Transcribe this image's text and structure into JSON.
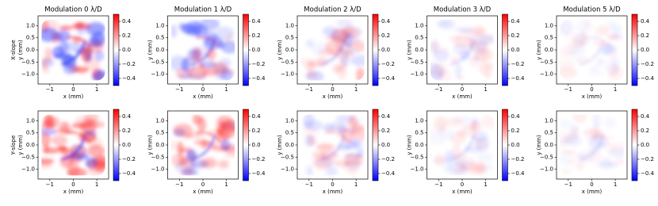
{
  "chart_data": [
    {
      "type": "heatmap",
      "title": "Modulation 0 λ/D",
      "row_label": "X-slope",
      "xlabel": "x (mm)",
      "ylabel": "y (mm)",
      "xlim": [
        -1.5,
        1.5
      ],
      "xticks": [
        {
          "value": -1,
          "label": "−1"
        },
        0,
        1
      ],
      "ylim": [
        -1.4,
        1.4
      ],
      "yticks": [
        {
          "value": -1,
          "label": "−1.0"
        },
        {
          "value": -0.5,
          "label": "−0.5"
        },
        {
          "value": 0,
          "label": "0.0"
        },
        0.5,
        {
          "value": 1,
          "label": "1.0"
        }
      ],
      "clim": [
        -0.5,
        0.5
      ],
      "cticks": [
        {
          "value": -0.4,
          "label": "−0.4"
        },
        {
          "value": -0.2,
          "label": "−0.2"
        },
        {
          "value": 0,
          "label": "0.0"
        },
        0.2,
        0.4
      ],
      "colormap": "bwr"
    },
    {
      "type": "heatmap",
      "title": "Modulation 1 λ/D",
      "xlabel": "x (mm)",
      "ylabel": "y (mm)",
      "xlim": [
        -1.5,
        1.5
      ],
      "xticks": [
        {
          "value": -1,
          "label": "−1"
        },
        0,
        1
      ],
      "ylim": [
        -1.4,
        1.4
      ],
      "yticks": [
        {
          "value": -1,
          "label": "−1.0"
        },
        {
          "value": -0.5,
          "label": "−0.5"
        },
        {
          "value": 0,
          "label": "0.0"
        },
        0.5,
        {
          "value": 1,
          "label": "1.0"
        }
      ],
      "clim": [
        -0.5,
        0.5
      ],
      "cticks": [
        {
          "value": -0.4,
          "label": "−0.4"
        },
        {
          "value": -0.2,
          "label": "−0.2"
        },
        {
          "value": 0,
          "label": "0.0"
        },
        0.2,
        0.4
      ],
      "colormap": "bwr"
    },
    {
      "type": "heatmap",
      "title": "Modulation 2 λ/D",
      "xlabel": "x (mm)",
      "ylabel": "y (mm)",
      "xlim": [
        -1.5,
        1.5
      ],
      "xticks": [
        {
          "value": -1,
          "label": "−1"
        },
        0,
        1
      ],
      "ylim": [
        -1.4,
        1.4
      ],
      "yticks": [
        {
          "value": -1,
          "label": "−1.0"
        },
        {
          "value": -0.5,
          "label": "−0.5"
        },
        {
          "value": 0,
          "label": "0.0"
        },
        0.5,
        {
          "value": 1,
          "label": "1.0"
        }
      ],
      "clim": [
        -0.5,
        0.5
      ],
      "cticks": [
        {
          "value": -0.4,
          "label": "−0.4"
        },
        {
          "value": -0.2,
          "label": "−0.2"
        },
        {
          "value": 0,
          "label": "0.0"
        },
        0.2,
        0.4
      ],
      "colormap": "bwr"
    },
    {
      "type": "heatmap",
      "title": "Modulation 3 λ/D",
      "xlabel": "x (mm)",
      "ylabel": "y (mm)",
      "xlim": [
        -1.5,
        1.5
      ],
      "xticks": [
        {
          "value": -1,
          "label": "−1"
        },
        0,
        1
      ],
      "ylim": [
        -1.4,
        1.4
      ],
      "yticks": [
        {
          "value": -1,
          "label": "−1.0"
        },
        {
          "value": -0.5,
          "label": "−0.5"
        },
        {
          "value": 0,
          "label": "0.0"
        },
        0.5,
        {
          "value": 1,
          "label": "1.0"
        }
      ],
      "clim": [
        -0.5,
        0.5
      ],
      "cticks": [
        {
          "value": -0.4,
          "label": "−0.4"
        },
        {
          "value": -0.2,
          "label": "−0.2"
        },
        {
          "value": 0,
          "label": "0.0"
        },
        0.2,
        0.4
      ],
      "colormap": "bwr"
    },
    {
      "type": "heatmap",
      "title": "Modulation 5 λ/D",
      "xlabel": "x (mm)",
      "ylabel": "y (mm)",
      "xlim": [
        -1.5,
        1.5
      ],
      "xticks": [
        {
          "value": -1,
          "label": "−1"
        },
        0,
        1
      ],
      "ylim": [
        -1.4,
        1.4
      ],
      "yticks": [
        {
          "value": -1,
          "label": "−1.0"
        },
        {
          "value": -0.5,
          "label": "−0.5"
        },
        {
          "value": 0,
          "label": "0.0"
        },
        0.5,
        {
          "value": 1,
          "label": "1.0"
        }
      ],
      "clim": [
        -0.5,
        0.5
      ],
      "cticks": [
        {
          "value": -0.4,
          "label": "−0.4"
        },
        {
          "value": -0.2,
          "label": "−0.2"
        },
        {
          "value": 0,
          "label": "0.0"
        },
        0.2,
        0.4
      ],
      "colormap": "bwr"
    },
    {
      "type": "heatmap",
      "row_label": "Y-slope",
      "xlabel": "x (mm)",
      "ylabel": "y (mm)",
      "xlim": [
        -1.5,
        1.5
      ],
      "xticks": [
        {
          "value": -1,
          "label": "−1"
        },
        0,
        1
      ],
      "ylim": [
        -1.4,
        1.4
      ],
      "yticks": [
        {
          "value": -1,
          "label": "−1.0"
        },
        {
          "value": -0.5,
          "label": "−0.5"
        },
        {
          "value": 0,
          "label": "0.0"
        },
        0.5,
        {
          "value": 1,
          "label": "1.0"
        }
      ],
      "clim": [
        -0.5,
        0.5
      ],
      "cticks": [
        {
          "value": -0.4,
          "label": "−0.4"
        },
        {
          "value": -0.2,
          "label": "−0.2"
        },
        {
          "value": 0,
          "label": "0.0"
        },
        0.2,
        0.4
      ],
      "colormap": "bwr"
    },
    {
      "type": "heatmap",
      "xlabel": "x (mm)",
      "ylabel": "y (mm)",
      "xlim": [
        -1.5,
        1.5
      ],
      "xticks": [
        {
          "value": -1,
          "label": "−1"
        },
        0,
        1
      ],
      "ylim": [
        -1.4,
        1.4
      ],
      "yticks": [
        {
          "value": -1,
          "label": "−1.0"
        },
        {
          "value": -0.5,
          "label": "−0.5"
        },
        {
          "value": 0,
          "label": "0.0"
        },
        0.5,
        {
          "value": 1,
          "label": "1.0"
        }
      ],
      "clim": [
        -0.5,
        0.5
      ],
      "cticks": [
        {
          "value": -0.4,
          "label": "−0.4"
        },
        {
          "value": -0.2,
          "label": "−0.2"
        },
        {
          "value": 0,
          "label": "0.0"
        },
        0.2,
        0.4
      ],
      "colormap": "bwr"
    },
    {
      "type": "heatmap",
      "xlabel": "x (mm)",
      "ylabel": "y (mm)",
      "xlim": [
        -1.5,
        1.5
      ],
      "xticks": [
        {
          "value": -1,
          "label": "−1"
        },
        0,
        1
      ],
      "ylim": [
        -1.4,
        1.4
      ],
      "yticks": [
        {
          "value": -1,
          "label": "−1.0"
        },
        {
          "value": -0.5,
          "label": "−0.5"
        },
        {
          "value": 0,
          "label": "0.0"
        },
        0.5,
        {
          "value": 1,
          "label": "1.0"
        }
      ],
      "clim": [
        -0.5,
        0.5
      ],
      "cticks": [
        {
          "value": -0.4,
          "label": "−0.4"
        },
        {
          "value": -0.2,
          "label": "−0.2"
        },
        {
          "value": 0,
          "label": "0.0"
        },
        0.2,
        0.4
      ],
      "colormap": "bwr"
    },
    {
      "type": "heatmap",
      "xlabel": "x (mm)",
      "ylabel": "y (mm)",
      "xlim": [
        -1.5,
        1.5
      ],
      "xticks": [
        {
          "value": -1,
          "label": "−1"
        },
        0,
        1
      ],
      "ylim": [
        -1.4,
        1.4
      ],
      "yticks": [
        {
          "value": -1,
          "label": "−1.0"
        },
        {
          "value": -0.5,
          "label": "−0.5"
        },
        {
          "value": 0,
          "label": "0.0"
        },
        0.5,
        {
          "value": 1,
          "label": "1.0"
        }
      ],
      "clim": [
        -0.5,
        0.5
      ],
      "cticks": [
        {
          "value": -0.4,
          "label": "−0.4"
        },
        {
          "value": -0.2,
          "label": "−0.2"
        },
        {
          "value": 0,
          "label": "0.0"
        },
        0.2,
        0.4
      ],
      "colormap": "bwr"
    },
    {
      "type": "heatmap",
      "xlabel": "x (mm)",
      "ylabel": "y (mm)",
      "xlim": [
        -1.5,
        1.5
      ],
      "xticks": [
        {
          "value": -1,
          "label": "−1"
        },
        0,
        1
      ],
      "ylim": [
        -1.4,
        1.4
      ],
      "yticks": [
        {
          "value": -1,
          "label": "−1.0"
        },
        {
          "value": -0.5,
          "label": "−0.5"
        },
        {
          "value": 0,
          "label": "0.0"
        },
        0.5,
        {
          "value": 1,
          "label": "1.0"
        }
      ],
      "clim": [
        -0.5,
        0.5
      ],
      "cticks": [
        {
          "value": -0.4,
          "label": "−0.4"
        },
        {
          "value": -0.2,
          "label": "−0.2"
        },
        {
          "value": 0,
          "label": "0.0"
        },
        0.2,
        0.4
      ],
      "colormap": "bwr"
    }
  ]
}
